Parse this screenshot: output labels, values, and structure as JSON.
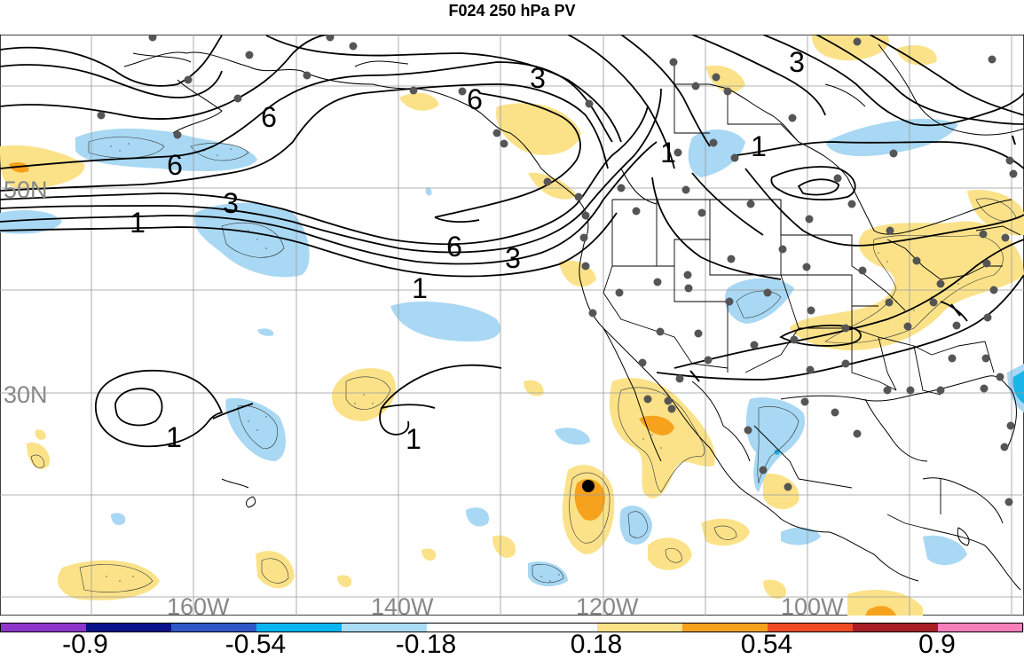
{
  "title": "F024 250 hPa PV",
  "map": {
    "lat_labels": [
      "50N",
      "30N"
    ],
    "lon_labels": [
      "160W",
      "140W",
      "120W",
      "100W"
    ],
    "contour_labels": [
      "6",
      "6",
      "3",
      "1",
      "3",
      "6",
      "3",
      "1",
      "1",
      "1",
      "3",
      "6",
      "1",
      "1"
    ],
    "fill_colors": {
      "positive_light": "#fbe289",
      "positive_mid": "#f6a21c",
      "negative_light": "#a8d8f3",
      "negative_mid": "#19b4e8"
    },
    "grid": true
  },
  "colorbar": {
    "labels": [
      "-0.9",
      "-0.54",
      "-0.18",
      "0.18",
      "0.54",
      "0.9"
    ],
    "colors": [
      "#8d35c9",
      "#08128a",
      "#2f57c7",
      "#09b4ef",
      "#a9dcf5",
      "#ffffff",
      "#ffffff",
      "#fbe289",
      "#f6a21c",
      "#ef4b23",
      "#a61d24",
      "#f77fb9"
    ]
  }
}
